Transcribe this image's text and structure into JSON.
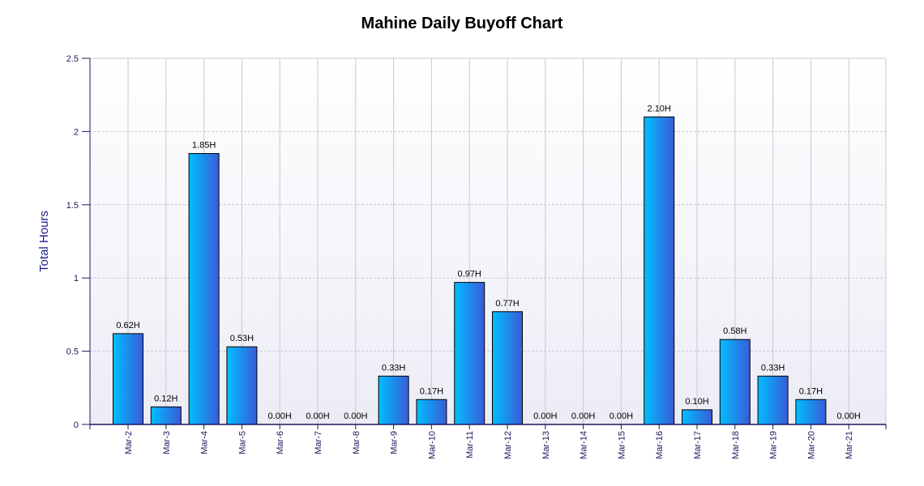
{
  "chart_data": {
    "type": "bar",
    "title": "Mahine Daily Buyoff Chart",
    "xlabel": "",
    "ylabel": "Total Hours",
    "ylim": [
      0,
      2.5
    ],
    "yticks": [
      "0",
      "0.5",
      "1",
      "1.5",
      "2",
      "2.5"
    ],
    "grid": true,
    "categories": [
      "Mar-2",
      "Mar-3",
      "Mar-4",
      "Mar-5",
      "Mar-6",
      "Mar-7",
      "Mar-8",
      "Mar-9",
      "Mar-10",
      "Mar-11",
      "Mar-12",
      "Mar-13",
      "Mar-14",
      "Mar-15",
      "Mar-16",
      "Mar-17",
      "Mar-18",
      "Mar-19",
      "Mar-20",
      "Mar-21"
    ],
    "values": [
      0.62,
      0.12,
      1.85,
      0.53,
      0,
      0,
      0,
      0.33,
      0.17,
      0.97,
      0.77,
      0,
      0,
      0,
      2.1,
      0.1,
      0.58,
      0.33,
      0.17,
      0
    ],
    "data_labels": [
      "0.62H",
      "0.12H",
      "1.85H",
      "0.53H",
      "0.00H",
      "0.00H",
      "0.00H",
      "0.33H",
      "0.17H",
      "0.97H",
      "0.77H",
      "0.00H",
      "0.00H",
      "0.00H",
      "2.10H",
      "0.10H",
      "0.58H",
      "0.33H",
      "0.17H",
      "0.00H"
    ],
    "colors": {
      "bar_left": "#00bfff",
      "bar_right": "#3a5bd9",
      "bar_border": "#000000",
      "axis": "#1a1a5e",
      "grid": "#c8c8d0"
    }
  }
}
